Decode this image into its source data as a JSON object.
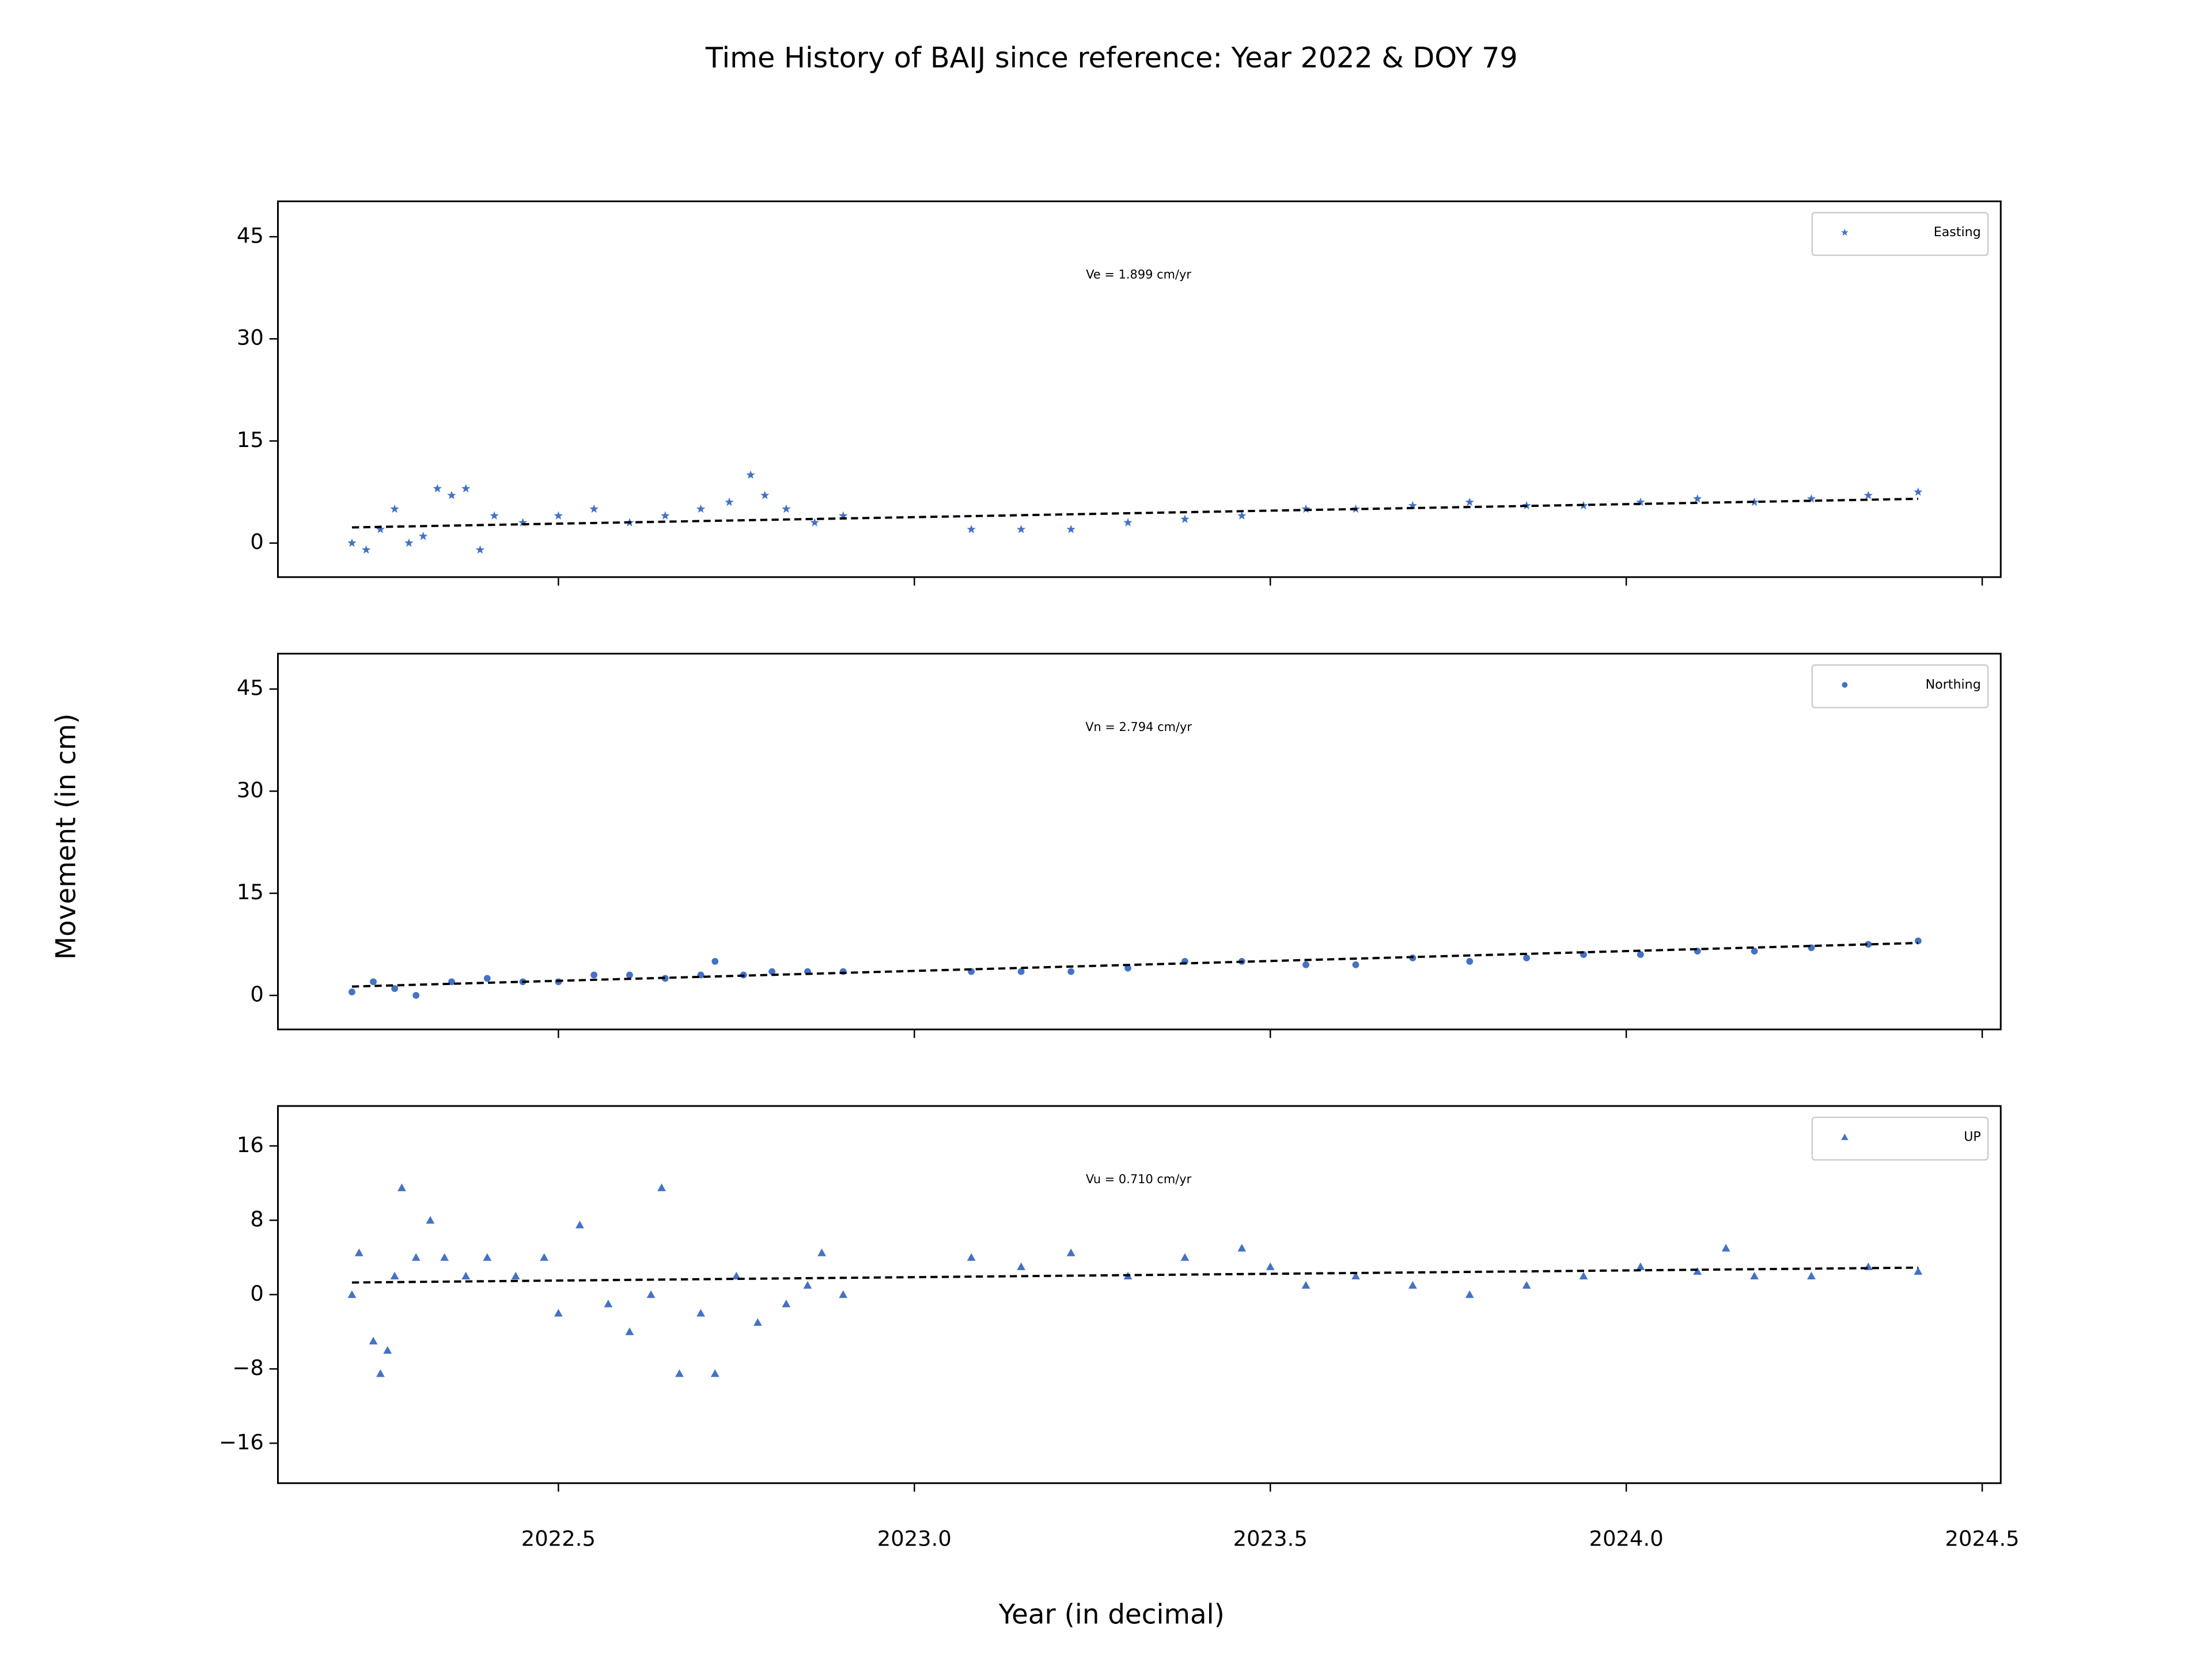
{
  "figure": {
    "title": "Time History of BAIJ since reference: Year 2022 & DOY 79",
    "xlabel": "Year (in decimal)",
    "ylabel": "Movement (in cm)"
  },
  "chart_data": [
    {
      "type": "scatter",
      "annotation": "Ve =  1.899 cm/yr",
      "marker": "star",
      "series": [
        {
          "name": "Easting",
          "color": "#4472c4",
          "x": [
            2022.21,
            2022.23,
            2022.25,
            2022.27,
            2022.29,
            2022.31,
            2022.33,
            2022.35,
            2022.37,
            2022.39,
            2022.41,
            2022.45,
            2022.5,
            2022.55,
            2022.6,
            2022.65,
            2022.7,
            2022.74,
            2022.77,
            2022.79,
            2022.82,
            2022.86,
            2022.9,
            2023.08,
            2023.15,
            2023.22,
            2023.3,
            2023.38,
            2023.46,
            2023.55,
            2023.62,
            2023.7,
            2023.78,
            2023.86,
            2023.94,
            2024.02,
            2024.1,
            2024.18,
            2024.26,
            2024.34,
            2024.41
          ],
          "values": [
            0,
            -1,
            2,
            5,
            0,
            1,
            8,
            7,
            8,
            -1,
            4,
            3,
            4,
            5,
            3,
            4,
            5,
            6,
            10,
            7,
            5,
            3,
            4,
            2,
            2,
            2,
            3,
            3.5,
            4,
            5,
            5,
            5.5,
            6,
            5.5,
            5.5,
            6,
            6.5,
            6,
            6.5,
            7,
            7.5
          ]
        }
      ],
      "trend": {
        "x": [
          2022.21,
          2024.41
        ],
        "values": [
          2.3,
          6.5
        ]
      },
      "xlim": [
        2022.106,
        2024.526
      ],
      "xticks": [
        2022.5,
        2023,
        2023.5,
        2024,
        2024.5
      ],
      "ylim": [
        -5,
        50.2
      ],
      "yticks": [
        0,
        15,
        30,
        45
      ]
    },
    {
      "type": "scatter",
      "annotation": "Vn =  2.794 cm/yr",
      "marker": "circle",
      "series": [
        {
          "name": "Northing",
          "color": "#4472c4",
          "x": [
            2022.21,
            2022.24,
            2022.27,
            2022.3,
            2022.35,
            2022.4,
            2022.45,
            2022.5,
            2022.55,
            2022.6,
            2022.65,
            2022.7,
            2022.72,
            2022.76,
            2022.8,
            2022.85,
            2022.9,
            2023.08,
            2023.15,
            2023.22,
            2023.3,
            2023.38,
            2023.46,
            2023.55,
            2023.62,
            2023.7,
            2023.78,
            2023.86,
            2023.94,
            2024.02,
            2024.1,
            2024.18,
            2024.26,
            2024.34,
            2024.41
          ],
          "values": [
            0.5,
            2,
            1,
            0,
            2,
            2.5,
            2,
            2,
            3,
            3,
            2.5,
            3,
            5,
            3,
            3.5,
            3.5,
            3.5,
            3.5,
            3.5,
            3.5,
            4,
            5,
            5,
            4.5,
            4.5,
            5.5,
            5,
            5.5,
            6,
            6,
            6.5,
            6.5,
            7,
            7.5,
            8
          ]
        }
      ],
      "trend": {
        "x": [
          2022.21,
          2024.41
        ],
        "values": [
          1.3,
          7.7
        ]
      },
      "xlim": [
        2022.106,
        2024.526
      ],
      "xticks": [
        2022.5,
        2023,
        2023.5,
        2024,
        2024.5
      ],
      "ylim": [
        -5,
        50.2
      ],
      "yticks": [
        0,
        15,
        30,
        45
      ]
    },
    {
      "type": "scatter",
      "annotation": "Vu =  0.710 cm/yr",
      "marker": "triangle",
      "series": [
        {
          "name": "UP",
          "color": "#4472c4",
          "x": [
            2022.21,
            2022.22,
            2022.24,
            2022.25,
            2022.26,
            2022.27,
            2022.28,
            2022.3,
            2022.32,
            2022.34,
            2022.37,
            2022.4,
            2022.44,
            2022.48,
            2022.5,
            2022.53,
            2022.57,
            2022.6,
            2022.63,
            2022.645,
            2022.67,
            2022.7,
            2022.72,
            2022.75,
            2022.78,
            2022.82,
            2022.85,
            2022.87,
            2022.9,
            2023.08,
            2023.15,
            2023.22,
            2023.3,
            2023.38,
            2023.46,
            2023.5,
            2023.55,
            2023.62,
            2023.7,
            2023.78,
            2023.86,
            2023.94,
            2024.02,
            2024.1,
            2024.14,
            2024.18,
            2024.26,
            2024.34,
            2024.41
          ],
          "values": [
            0,
            4.5,
            -5,
            -8.5,
            -6,
            2,
            11.5,
            4,
            8,
            4,
            2,
            4,
            2,
            4,
            -2,
            7.5,
            -1,
            -4,
            0,
            11.5,
            -8.5,
            -2,
            -8.5,
            2,
            -3,
            -1,
            1,
            4.5,
            0,
            4,
            3,
            4.5,
            2,
            4,
            5,
            3,
            1,
            2,
            1,
            0,
            1,
            2,
            3,
            2.5,
            5,
            2,
            2,
            3,
            2.5
          ]
        }
      ],
      "trend": {
        "x": [
          2022.21,
          2024.41
        ],
        "values": [
          1.3,
          2.9
        ]
      },
      "xlim": [
        2022.106,
        2024.526
      ],
      "xticks": [
        2022.5,
        {
          "value": 2023,
          "label": "2023.0"
        },
        2023.5,
        {
          "value": 2024,
          "label": "2024.0"
        },
        2024.5
      ],
      "ylim": [
        -20.3,
        20.3
      ],
      "yticks": [
        {
          "value": -16,
          "label": "−16"
        },
        {
          "value": -8,
          "label": "−8"
        },
        0,
        8,
        16
      ]
    }
  ]
}
